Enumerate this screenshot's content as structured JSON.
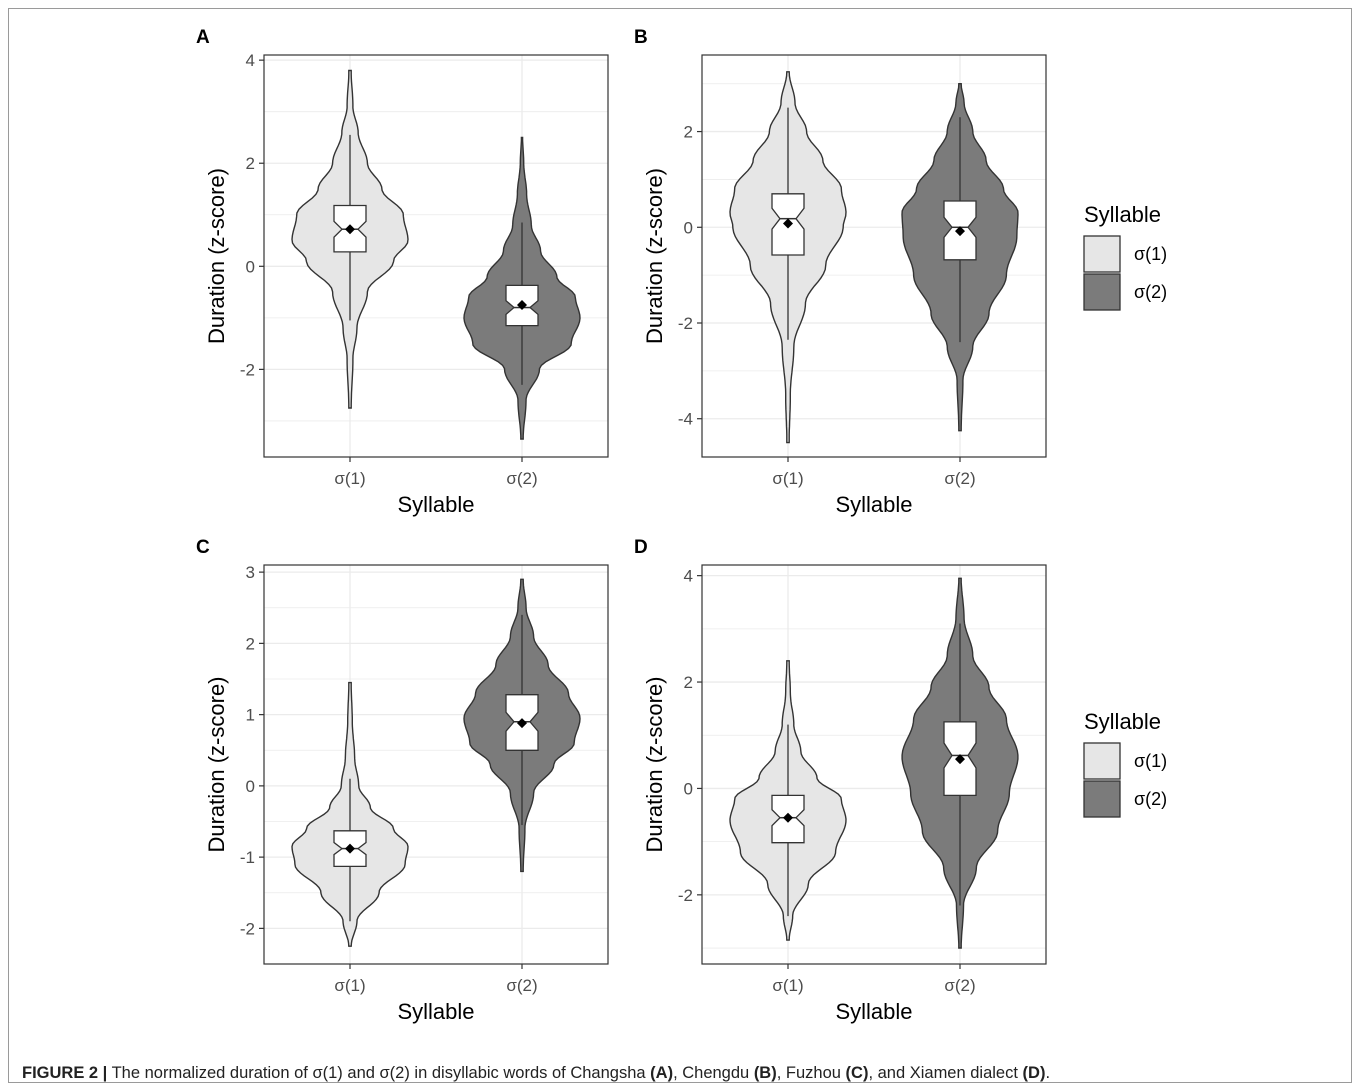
{
  "caption": {
    "label": "FIGURE 2 |",
    "text_1": "The normalized duration of σ(1) and σ(2) in disyllabic words of Changsha",
    "ref_a": "(A)",
    "text_2": ", Chengdu",
    "ref_b": "(B)",
    "text_3": ", Fuzhou",
    "ref_c": "(C)",
    "text_4": ", and Xiamen dialect",
    "ref_d": "(D)",
    "text_5": "."
  },
  "colors": {
    "sigma1_fill": "#e6e6e6",
    "sigma2_fill": "#7b7b7b",
    "outline": "#333333",
    "grid": "#ebebeb"
  },
  "chart_data": [
    {
      "panel": "A",
      "type": "violin",
      "xlabel": "Syllable",
      "ylabel": "Duration (z-score)",
      "categories": [
        "σ(1)",
        "σ(2)"
      ],
      "ylim": [
        -3.7,
        4.1
      ],
      "yticks": [
        -2,
        0,
        2,
        4
      ],
      "grid": true,
      "series": [
        {
          "name": "σ(1)",
          "color": "#e6e6e6",
          "violin": {
            "min": -2.75,
            "max": 3.8,
            "profile": [
              [
                -2.75,
                0.02
              ],
              [
                -1.8,
                0.05
              ],
              [
                -1.2,
                0.12
              ],
              [
                -0.5,
                0.3
              ],
              [
                0.1,
                0.75
              ],
              [
                0.5,
                1.0
              ],
              [
                1.0,
                0.92
              ],
              [
                1.5,
                0.55
              ],
              [
                2.0,
                0.3
              ],
              [
                2.6,
                0.14
              ],
              [
                3.1,
                0.05
              ],
              [
                3.8,
                0.02
              ]
            ]
          },
          "box": {
            "q1": 0.28,
            "median": 0.72,
            "q3": 1.18,
            "whisker_low": -1.05,
            "whisker_high": 2.55
          },
          "mean": 0.72
        },
        {
          "name": "σ(2)",
          "color": "#7b7b7b",
          "violin": {
            "min": -3.35,
            "max": 2.5,
            "profile": [
              [
                -3.35,
                0.02
              ],
              [
                -2.6,
                0.07
              ],
              [
                -2.0,
                0.3
              ],
              [
                -1.5,
                0.85
              ],
              [
                -1.0,
                1.0
              ],
              [
                -0.6,
                0.92
              ],
              [
                -0.2,
                0.6
              ],
              [
                0.3,
                0.32
              ],
              [
                0.8,
                0.16
              ],
              [
                1.4,
                0.08
              ],
              [
                2.0,
                0.03
              ],
              [
                2.5,
                0.01
              ]
            ]
          },
          "box": {
            "q1": -1.15,
            "median": -0.8,
            "q3": -0.37,
            "whisker_low": -2.3,
            "whisker_high": 0.85
          },
          "mean": -0.75
        }
      ]
    },
    {
      "panel": "B",
      "type": "violin",
      "xlabel": "Syllable",
      "ylabel": "Duration (z-score)",
      "categories": [
        "σ(1)",
        "σ(2)"
      ],
      "ylim": [
        -4.8,
        3.6
      ],
      "yticks": [
        -4,
        -2,
        0,
        2
      ],
      "grid": true,
      "series": [
        {
          "name": "σ(1)",
          "color": "#e6e6e6",
          "violin": {
            "min": -4.5,
            "max": 3.25,
            "profile": [
              [
                -4.5,
                0.02
              ],
              [
                -3.5,
                0.04
              ],
              [
                -2.5,
                0.1
              ],
              [
                -1.6,
                0.3
              ],
              [
                -0.8,
                0.65
              ],
              [
                0.0,
                0.95
              ],
              [
                0.3,
                1.0
              ],
              [
                0.8,
                0.92
              ],
              [
                1.4,
                0.6
              ],
              [
                2.0,
                0.32
              ],
              [
                2.6,
                0.12
              ],
              [
                3.25,
                0.02
              ]
            ]
          },
          "box": {
            "q1": -0.58,
            "median": 0.18,
            "q3": 0.7,
            "whisker_low": -2.35,
            "whisker_high": 2.5
          },
          "mean": 0.08
        },
        {
          "name": "σ(2)",
          "color": "#7b7b7b",
          "violin": {
            "min": -4.25,
            "max": 3.0,
            "profile": [
              [
                -4.25,
                0.02
              ],
              [
                -3.2,
                0.05
              ],
              [
                -2.5,
                0.22
              ],
              [
                -1.8,
                0.5
              ],
              [
                -1.0,
                0.8
              ],
              [
                -0.2,
                0.98
              ],
              [
                0.3,
                1.0
              ],
              [
                0.8,
                0.75
              ],
              [
                1.4,
                0.45
              ],
              [
                2.0,
                0.22
              ],
              [
                2.6,
                0.07
              ],
              [
                3.0,
                0.02
              ]
            ]
          },
          "box": {
            "q1": -0.68,
            "median": 0.0,
            "q3": 0.55,
            "whisker_low": -2.4,
            "whisker_high": 2.3
          },
          "mean": -0.08
        }
      ]
    },
    {
      "panel": "C",
      "type": "violin",
      "xlabel": "Syllable",
      "ylabel": "Duration (z-score)",
      "categories": [
        "σ(1)",
        "σ(2)"
      ],
      "ylim": [
        -2.5,
        3.1
      ],
      "yticks": [
        -2,
        -1,
        0,
        1,
        2,
        3
      ],
      "grid": true,
      "series": [
        {
          "name": "σ(1)",
          "color": "#e6e6e6",
          "violin": {
            "min": -2.25,
            "max": 1.45,
            "profile": [
              [
                -2.25,
                0.02
              ],
              [
                -1.9,
                0.12
              ],
              [
                -1.5,
                0.5
              ],
              [
                -1.1,
                0.95
              ],
              [
                -0.85,
                1.0
              ],
              [
                -0.6,
                0.75
              ],
              [
                -0.3,
                0.35
              ],
              [
                0.0,
                0.15
              ],
              [
                0.4,
                0.08
              ],
              [
                0.9,
                0.04
              ],
              [
                1.45,
                0.02
              ]
            ]
          },
          "box": {
            "q1": -1.13,
            "median": -0.88,
            "q3": -0.63,
            "whisker_low": -1.9,
            "whisker_high": 0.1
          },
          "mean": -0.88
        },
        {
          "name": "σ(2)",
          "color": "#7b7b7b",
          "violin": {
            "min": -1.2,
            "max": 2.9,
            "profile": [
              [
                -1.2,
                0.02
              ],
              [
                -0.6,
                0.05
              ],
              [
                -0.1,
                0.2
              ],
              [
                0.3,
                0.55
              ],
              [
                0.6,
                0.9
              ],
              [
                0.95,
                1.0
              ],
              [
                1.3,
                0.8
              ],
              [
                1.7,
                0.45
              ],
              [
                2.1,
                0.2
              ],
              [
                2.5,
                0.07
              ],
              [
                2.9,
                0.02
              ]
            ]
          },
          "box": {
            "q1": 0.5,
            "median": 0.9,
            "q3": 1.28,
            "whisker_low": -0.55,
            "whisker_high": 2.4
          },
          "mean": 0.88
        }
      ]
    },
    {
      "panel": "D",
      "type": "violin",
      "xlabel": "Syllable",
      "ylabel": "Duration (z-score)",
      "categories": [
        "σ(1)",
        "σ(2)"
      ],
      "ylim": [
        -3.3,
        4.2
      ],
      "yticks": [
        -2,
        0,
        2,
        4
      ],
      "grid": true,
      "series": [
        {
          "name": "σ(1)",
          "color": "#e6e6e6",
          "violin": {
            "min": -2.85,
            "max": 2.4,
            "profile": [
              [
                -2.85,
                0.02
              ],
              [
                -2.4,
                0.08
              ],
              [
                -1.8,
                0.35
              ],
              [
                -1.2,
                0.82
              ],
              [
                -0.6,
                1.0
              ],
              [
                -0.2,
                0.92
              ],
              [
                0.2,
                0.5
              ],
              [
                0.7,
                0.22
              ],
              [
                1.2,
                0.1
              ],
              [
                1.8,
                0.04
              ],
              [
                2.4,
                0.02
              ]
            ]
          },
          "box": {
            "q1": -1.02,
            "median": -0.55,
            "q3": -0.13,
            "whisker_low": -2.4,
            "whisker_high": 1.2
          },
          "mean": -0.55
        },
        {
          "name": "σ(2)",
          "color": "#7b7b7b",
          "violin": {
            "min": -3.0,
            "max": 3.95,
            "profile": [
              [
                -3.0,
                0.02
              ],
              [
                -2.2,
                0.06
              ],
              [
                -1.5,
                0.28
              ],
              [
                -0.8,
                0.65
              ],
              [
                -0.1,
                0.85
              ],
              [
                0.6,
                1.0
              ],
              [
                1.3,
                0.8
              ],
              [
                1.9,
                0.5
              ],
              [
                2.5,
                0.22
              ],
              [
                3.2,
                0.07
              ],
              [
                3.95,
                0.02
              ]
            ]
          },
          "box": {
            "q1": -0.13,
            "median": 0.62,
            "q3": 1.25,
            "whisker_low": -2.2,
            "whisker_high": 3.1
          },
          "mean": 0.55
        }
      ]
    }
  ],
  "legends": [
    {
      "title": "Syllable",
      "items": [
        {
          "label": "σ(1)",
          "color": "#e6e6e6"
        },
        {
          "label": "σ(2)",
          "color": "#7b7b7b"
        }
      ]
    },
    {
      "title": "Syllable",
      "items": [
        {
          "label": "σ(1)",
          "color": "#e6e6e6"
        },
        {
          "label": "σ(2)",
          "color": "#7b7b7b"
        }
      ]
    }
  ]
}
